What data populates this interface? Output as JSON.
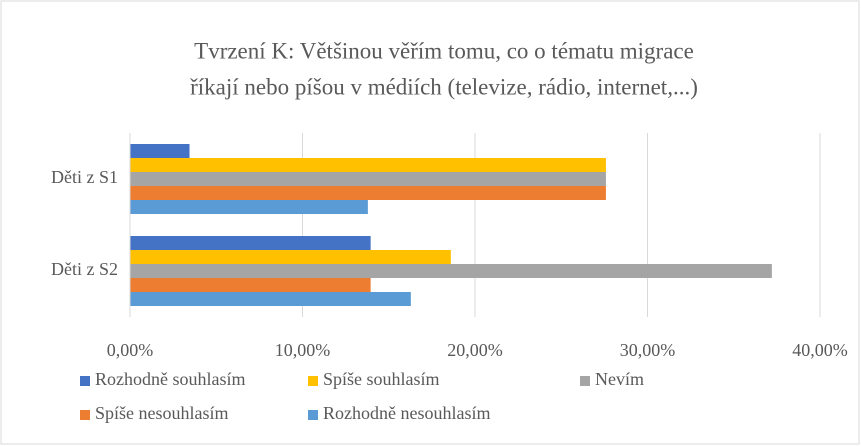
{
  "chart_data": {
    "type": "bar",
    "orientation": "horizontal",
    "title": [
      "Tvrzení K: Většinou věřím tomu, co o tématu migrace",
      "říkají nebo píšou v médiích (televize, rádio, internet,...)"
    ],
    "categories": [
      "Děti z S1",
      "Děti z S2"
    ],
    "series": [
      {
        "name": "Rozhodně souhlasím",
        "color": "#4472c4",
        "values": [
          3.45,
          13.95
        ]
      },
      {
        "name": "Spíše souhlasím",
        "color": "#ffc000",
        "values": [
          27.59,
          18.6
        ]
      },
      {
        "name": "Nevím",
        "color": "#a5a5a5",
        "values": [
          27.59,
          37.21
        ]
      },
      {
        "name": "Spíše nesouhlasím",
        "color": "#ed7d31",
        "values": [
          27.59,
          13.95
        ]
      },
      {
        "name": "Rozhodně nesouhlasím",
        "color": "#5b9bd5",
        "values": [
          13.79,
          16.28
        ]
      }
    ],
    "xlim": [
      0,
      40
    ],
    "xticks": [
      {
        "value": 0,
        "label": "0,00%"
      },
      {
        "value": 10,
        "label": "10,00%"
      },
      {
        "value": 20,
        "label": "20,00%"
      },
      {
        "value": 30,
        "label": "30,00%"
      },
      {
        "value": 40,
        "label": "40,00%"
      }
    ],
    "grid": true,
    "legend": "bottom"
  }
}
